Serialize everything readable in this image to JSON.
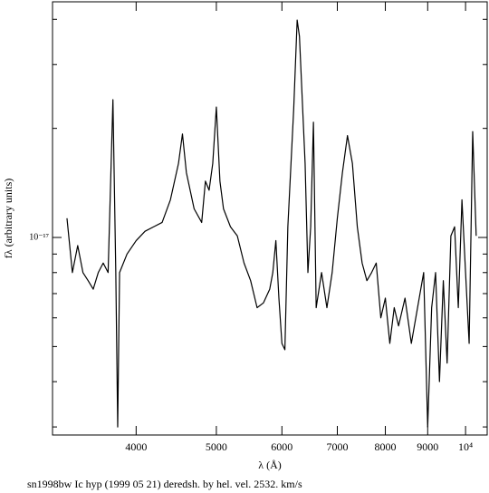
{
  "chart_data": {
    "type": "line",
    "title": "sn1998bw Ic hyp (1999 05 21) deredsh. by hel. vel.  2532. km/s",
    "x_label": "λ (Å)",
    "y_label": "fλ (arbitrary units)",
    "xscale": "log",
    "yscale": "log",
    "xlim": [
      3170,
      10620
    ],
    "ylim": [
      2.85e-18,
      4.47e-17
    ],
    "xticks": [
      4000,
      5000,
      6000,
      7000,
      8000,
      9000,
      {
        "value": 10000,
        "label": "10⁴"
      }
    ],
    "yticks": [
      {
        "value": 1e-17,
        "label": "10⁻¹⁷"
      }
    ],
    "yminorticks": [
      3e-18,
      4e-18,
      5e-18,
      6e-18,
      7e-18,
      8e-18,
      9e-18,
      2e-17,
      3e-17,
      4e-17
    ],
    "x": [
      3300,
      3350,
      3400,
      3450,
      3500,
      3550,
      3600,
      3650,
      3700,
      3750,
      3780,
      3800,
      3820,
      3900,
      4000,
      4100,
      4200,
      4300,
      4400,
      4500,
      4550,
      4600,
      4700,
      4800,
      4850,
      4900,
      4950,
      5000,
      5050,
      5100,
      5200,
      5300,
      5400,
      5500,
      5600,
      5700,
      5800,
      5850,
      5900,
      5950,
      6000,
      6050,
      6100,
      6200,
      6260,
      6300,
      6400,
      6450,
      6500,
      6550,
      6600,
      6700,
      6800,
      6900,
      7000,
      7100,
      7200,
      7300,
      7400,
      7500,
      7600,
      7700,
      7800,
      7900,
      8000,
      8100,
      8200,
      8300,
      8450,
      8600,
      8750,
      8900,
      9000,
      9100,
      9200,
      9300,
      9400,
      9500,
      9600,
      9700,
      9800,
      9900,
      10000,
      10100,
      10200,
      10300
    ],
    "series": [
      {
        "color": "#000000",
        "values": [
          1.13e-17,
          8e-18,
          9.5e-18,
          8e-18,
          7.6e-18,
          7.2e-18,
          8e-18,
          8.5e-18,
          8e-18,
          2.4e-17,
          8e-18,
          3e-18,
          8e-18,
          9e-18,
          9.8e-18,
          1.04e-17,
          1.07e-17,
          1.1e-17,
          1.27e-17,
          1.6e-17,
          1.93e-17,
          1.51e-17,
          1.2e-17,
          1.1e-17,
          1.43e-17,
          1.35e-17,
          1.6e-17,
          2.29e-17,
          1.43e-17,
          1.2e-17,
          1.07e-17,
          1.01e-17,
          8.5e-18,
          7.6e-18,
          6.4e-18,
          6.6e-18,
          7.2e-18,
          8e-18,
          9.8e-18,
          6.8e-18,
          5.1e-18,
          4.9e-18,
          1.07e-17,
          2.26e-17,
          3.98e-17,
          3.59e-17,
          1.6e-17,
          8e-18,
          1.07e-17,
          2.08e-17,
          6.4e-18,
          8e-18,
          6.4e-18,
          8e-18,
          1.13e-17,
          1.51e-17,
          1.91e-17,
          1.6e-17,
          1.07e-17,
          8.5e-18,
          7.6e-18,
          8e-18,
          8.5e-18,
          6e-18,
          6.8e-18,
          5.1e-18,
          6.4e-18,
          5.7e-18,
          6.8e-18,
          5.1e-18,
          6.4e-18,
          8e-18,
          3e-18,
          6.4e-18,
          8e-18,
          4e-18,
          7.6e-18,
          4.5e-18,
          1.01e-17,
          1.07e-17,
          6.4e-18,
          1.27e-17,
          8e-18,
          5.1e-18,
          1.96e-17,
          1.01e-17
        ]
      }
    ]
  }
}
